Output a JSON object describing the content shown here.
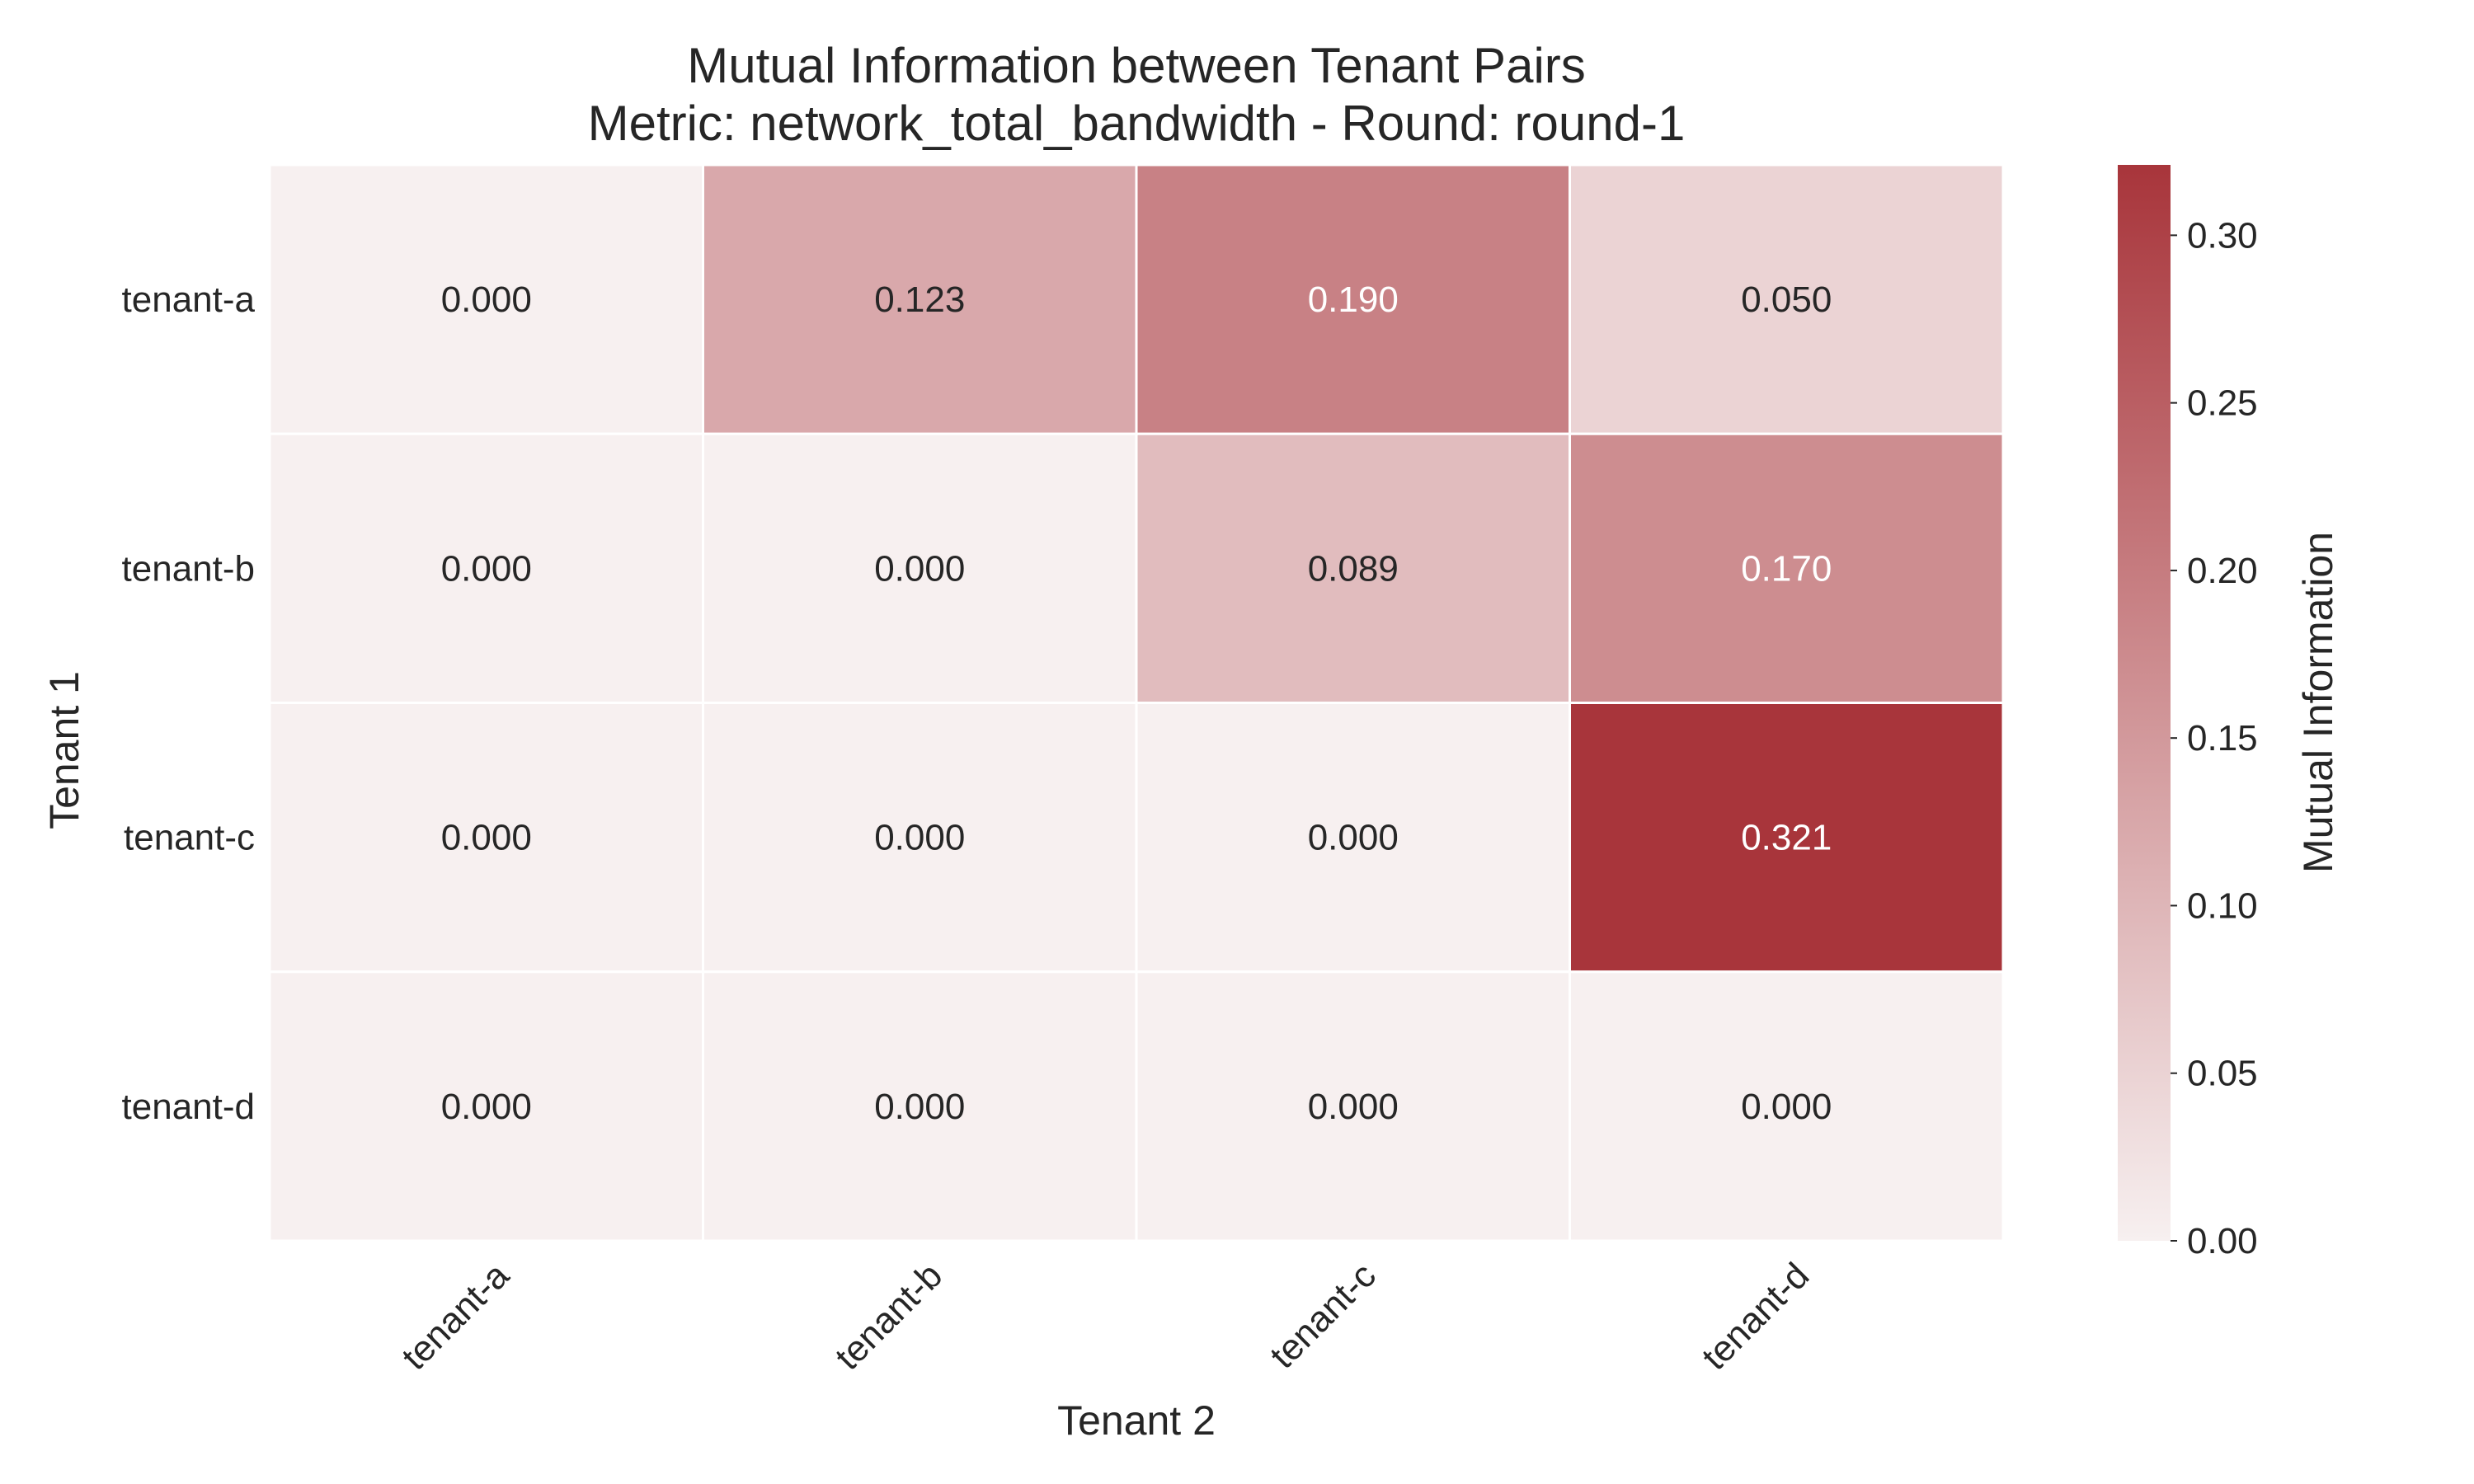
{
  "chart_data": {
    "type": "heatmap",
    "title": "Mutual Information between Tenant Pairs",
    "subtitle": "Metric: network_total_bandwidth - Round: round-1",
    "xlabel": "Tenant 2",
    "ylabel": "Tenant 1",
    "x_categories": [
      "tenant-a",
      "tenant-b",
      "tenant-c",
      "tenant-d"
    ],
    "y_categories": [
      "tenant-a",
      "tenant-b",
      "tenant-c",
      "tenant-d"
    ],
    "values": [
      [
        0.0,
        0.123,
        0.19,
        0.05
      ],
      [
        0.0,
        0.0,
        0.089,
        0.17
      ],
      [
        0.0,
        0.0,
        0.0,
        0.321
      ],
      [
        0.0,
        0.0,
        0.0,
        0.0
      ]
    ],
    "value_labels": [
      [
        "0.000",
        "0.123",
        "0.190",
        "0.050"
      ],
      [
        "0.000",
        "0.000",
        "0.089",
        "0.170"
      ],
      [
        "0.000",
        "0.000",
        "0.000",
        "0.321"
      ],
      [
        "0.000",
        "0.000",
        "0.000",
        "0.000"
      ]
    ],
    "colorbar": {
      "label": "Mutual Information",
      "range": [
        0,
        0.321
      ],
      "ticks": [
        "0.00",
        "0.05",
        "0.10",
        "0.15",
        "0.20",
        "0.25",
        "0.30"
      ],
      "color_low": "#f7f0f0",
      "color_high": "#a8353b"
    },
    "grid": false
  }
}
